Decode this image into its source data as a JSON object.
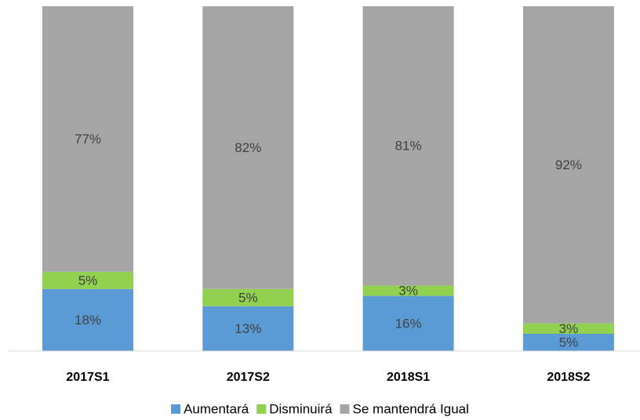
{
  "chart_data": {
    "type": "stacked_bar",
    "categories": [
      "2017S1",
      "2017S2",
      "2018S1",
      "2018S2"
    ],
    "ylim": [
      0,
      100
    ],
    "series": [
      {
        "name": "Aumentará",
        "color": "#5b9bd5",
        "values": [
          18,
          13,
          16,
          5
        ],
        "value_labels": [
          "18%",
          "13%",
          "16%",
          "5%"
        ]
      },
      {
        "name": "Disminuirá",
        "color": "#92d050",
        "values": [
          5,
          5,
          3,
          3
        ],
        "value_labels": [
          "5%",
          "5%",
          "3%",
          "3%"
        ]
      },
      {
        "name": "Se mantendrá Igual",
        "color": "#a5a5a5",
        "values": [
          77,
          82,
          81,
          92
        ],
        "value_labels": [
          "77%",
          "82%",
          "81%",
          "92%"
        ]
      }
    ],
    "legend": "bottom"
  }
}
